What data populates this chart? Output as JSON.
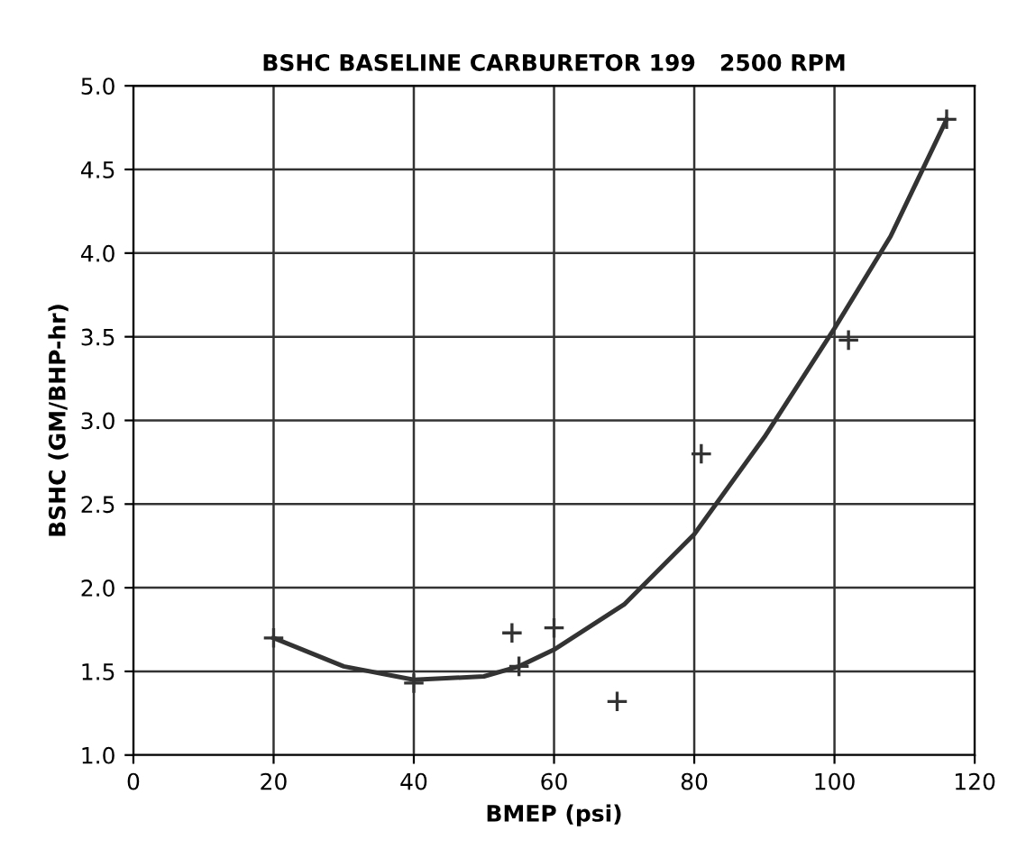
{
  "chart_data": {
    "type": "scatter",
    "title": "BSHC BASELINE CARBURETOR 199   2500 RPM",
    "xlabel": "BMEP (psi)",
    "ylabel": "BSHC (GM/BHP-hr)",
    "series": [
      {
        "color": "#333333",
        "marker": "cross",
        "x": [
          20,
          40,
          54,
          55,
          60,
          69,
          81,
          102,
          116
        ],
        "values": [
          1.7,
          1.43,
          1.73,
          1.53,
          1.76,
          1.32,
          2.8,
          3.48,
          4.8
        ]
      },
      {
        "type": "line",
        "color": "#333333",
        "marker": "none",
        "line_style": "solid",
        "x": [
          20,
          30,
          40,
          50,
          55,
          60,
          70,
          80,
          90,
          100,
          108,
          116
        ],
        "values": [
          1.7,
          1.53,
          1.45,
          1.47,
          1.53,
          1.63,
          1.9,
          2.32,
          2.9,
          3.55,
          4.1,
          4.8
        ]
      }
    ],
    "xlim": [
      0,
      120
    ],
    "xticks": [
      0,
      20,
      40,
      60,
      80,
      100,
      120
    ],
    "ylim": [
      1.0,
      5.0
    ],
    "yticks": [
      {
        "value": 1.0,
        "label": "1.0"
      },
      {
        "value": 1.5,
        "label": "1.5"
      },
      {
        "value": 2.0,
        "label": "2.0"
      },
      {
        "value": 2.5,
        "label": "2.5"
      },
      {
        "value": 3.0,
        "label": "3.0"
      },
      {
        "value": 3.5,
        "label": "3.5"
      },
      {
        "value": 4.0,
        "label": "4.0"
      },
      {
        "value": 4.5,
        "label": "4.5"
      },
      {
        "value": 5.0,
        "label": "5.0"
      }
    ],
    "grid": true,
    "legend": false
  }
}
